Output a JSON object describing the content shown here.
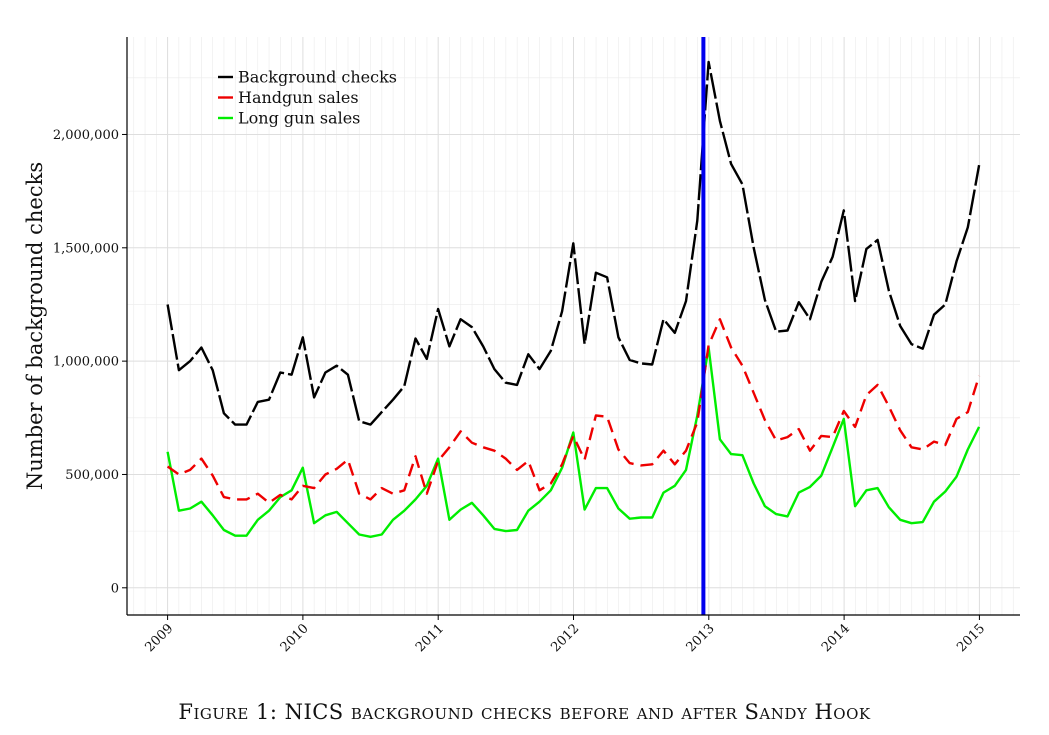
{
  "caption": "Figure 1: NICS background checks before and after Sandy Hook",
  "chart_data": {
    "type": "line",
    "title": "",
    "xlabel": "",
    "ylabel": "Number of background checks",
    "xlim": [
      2008.7,
      2015.3
    ],
    "ylim": [
      -120000,
      2430000
    ],
    "x_ticks": [
      2009,
      2010,
      2011,
      2012,
      2013,
      2014,
      2015
    ],
    "x_tick_labels": [
      "2009",
      "2010",
      "2011",
      "2012",
      "2013",
      "2014",
      "2015"
    ],
    "y_ticks": [
      0,
      500000,
      1000000,
      1500000,
      2000000
    ],
    "y_tick_labels": [
      "0",
      "500,000",
      "1,000,000",
      "1,500,000",
      "2,000,000"
    ],
    "grid": true,
    "legend_position": "top-left",
    "vline": {
      "x": 2012.96,
      "color": "#0000ee"
    },
    "x_start": 2009,
    "x_step": 0.0833,
    "series": [
      {
        "name": "Background checks",
        "color": "#000000",
        "dash": "long",
        "values": [
          1250000,
          960000,
          1000000,
          1060000,
          960000,
          770000,
          720000,
          720000,
          820000,
          830000,
          950000,
          940000,
          1105000,
          840000,
          950000,
          980000,
          940000,
          735000,
          720000,
          775000,
          830000,
          890000,
          1100000,
          1010000,
          1230000,
          1065000,
          1185000,
          1150000,
          1065000,
          965000,
          905000,
          895000,
          1030000,
          965000,
          1045000,
          1220000,
          1520000,
          1075000,
          1390000,
          1370000,
          1105000,
          1005000,
          990000,
          985000,
          1185000,
          1125000,
          1265000,
          1620000,
          2320000,
          2060000,
          1870000,
          1780000,
          1500000,
          1270000,
          1130000,
          1135000,
          1260000,
          1185000,
          1350000,
          1460000,
          1665000,
          1265000,
          1495000,
          1535000,
          1310000,
          1155000,
          1075000,
          1055000,
          1205000,
          1250000,
          1440000,
          1590000,
          1865000
        ]
      },
      {
        "name": "Handgun sales",
        "color": "#ee0000",
        "dash": "medium",
        "values": [
          535000,
          500000,
          520000,
          570000,
          495000,
          400000,
          390000,
          390000,
          415000,
          375000,
          410000,
          390000,
          450000,
          440000,
          500000,
          525000,
          565000,
          415000,
          390000,
          440000,
          415000,
          430000,
          580000,
          415000,
          560000,
          620000,
          690000,
          640000,
          620000,
          605000,
          570000,
          520000,
          560000,
          430000,
          460000,
          545000,
          670000,
          565000,
          760000,
          755000,
          610000,
          550000,
          540000,
          545000,
          605000,
          545000,
          605000,
          730000,
          1070000,
          1185000,
          1060000,
          980000,
          860000,
          740000,
          650000,
          665000,
          700000,
          605000,
          670000,
          665000,
          780000,
          710000,
          850000,
          895000,
          800000,
          695000,
          620000,
          610000,
          645000,
          630000,
          745000,
          775000,
          935000
        ]
      },
      {
        "name": "Long gun sales",
        "color": "#00ee00",
        "dash": "solid",
        "values": [
          600000,
          340000,
          350000,
          380000,
          320000,
          255000,
          230000,
          230000,
          300000,
          340000,
          400000,
          430000,
          530000,
          285000,
          320000,
          335000,
          285000,
          235000,
          225000,
          235000,
          300000,
          340000,
          390000,
          450000,
          570000,
          300000,
          345000,
          375000,
          320000,
          260000,
          250000,
          255000,
          340000,
          380000,
          430000,
          530000,
          685000,
          345000,
          440000,
          440000,
          350000,
          305000,
          310000,
          310000,
          420000,
          450000,
          520000,
          760000,
          1060000,
          655000,
          590000,
          585000,
          460000,
          360000,
          325000,
          315000,
          420000,
          445000,
          495000,
          620000,
          745000,
          360000,
          430000,
          440000,
          355000,
          300000,
          285000,
          290000,
          380000,
          425000,
          490000,
          610000,
          710000
        ]
      }
    ]
  }
}
